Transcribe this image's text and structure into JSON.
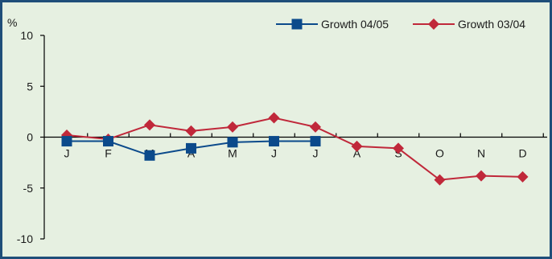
{
  "chart_data": {
    "type": "line",
    "ylabel": "%",
    "ylim": [
      -10,
      10
    ],
    "y_ticks": [
      "10",
      "5",
      "0",
      "-5",
      "-10"
    ],
    "categories": [
      "J",
      "F",
      "M",
      "A",
      "M",
      "J",
      "J",
      "A",
      "S",
      "O",
      "N",
      "D"
    ],
    "legend_position": "top-right",
    "grid": false,
    "series": [
      {
        "name": "Growth 04/05",
        "color": "#0b4a8b",
        "marker": "square",
        "values": [
          -0.4,
          -0.4,
          -1.8,
          -1.1,
          -0.5,
          -0.4,
          -0.4,
          null,
          null,
          null,
          null,
          null
        ]
      },
      {
        "name": "Growth 03/04",
        "color": "#c0283a",
        "marker": "diamond",
        "values": [
          0.2,
          -0.2,
          1.2,
          0.6,
          1.0,
          1.9,
          1.0,
          -0.9,
          -1.1,
          -4.2,
          -3.8,
          -3.9
        ]
      }
    ]
  }
}
